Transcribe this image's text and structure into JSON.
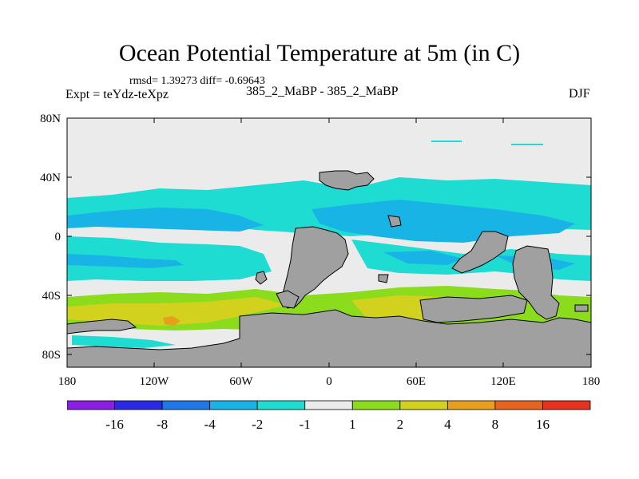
{
  "title": "Ocean Potential Temperature at 5m (in C)",
  "stats_text": "rmsd= 1.39273 diff= -0.69643",
  "experiment_label": "Expt = teYdz-teXpz",
  "run_label": "385_2_MaBP - 385_2_MaBP",
  "season": "DJF",
  "y_ticks": [
    "80N",
    "40N",
    "0",
    "40S",
    "80S"
  ],
  "x_ticks": [
    "180",
    "120W",
    "60W",
    "0",
    "60E",
    "120E",
    "180"
  ],
  "colorbar": {
    "colors": [
      "#8a1ee6",
      "#2a2ae6",
      "#1e78e6",
      "#18b4e6",
      "#1edcd2",
      "#ebebeb",
      "#8cdc1e",
      "#d2d21e",
      "#e6a01e",
      "#e6641e",
      "#e6321e"
    ],
    "labels": [
      "-16",
      "-8",
      "-4",
      "-2",
      "-1",
      "1",
      "2",
      "4",
      "8",
      "16"
    ]
  },
  "colors": {
    "land": "#a0a0a0",
    "background": "#ebebeb",
    "anomaly_minus_2_to_minus_1": "#1edcd2",
    "anomaly_minus_4_to_minus_2": "#18b4e6",
    "anomaly_1_to_2": "#8cdc1e",
    "anomaly_2_to_4": "#d2d21e",
    "anomaly_4_to_8": "#e6a01e"
  }
}
